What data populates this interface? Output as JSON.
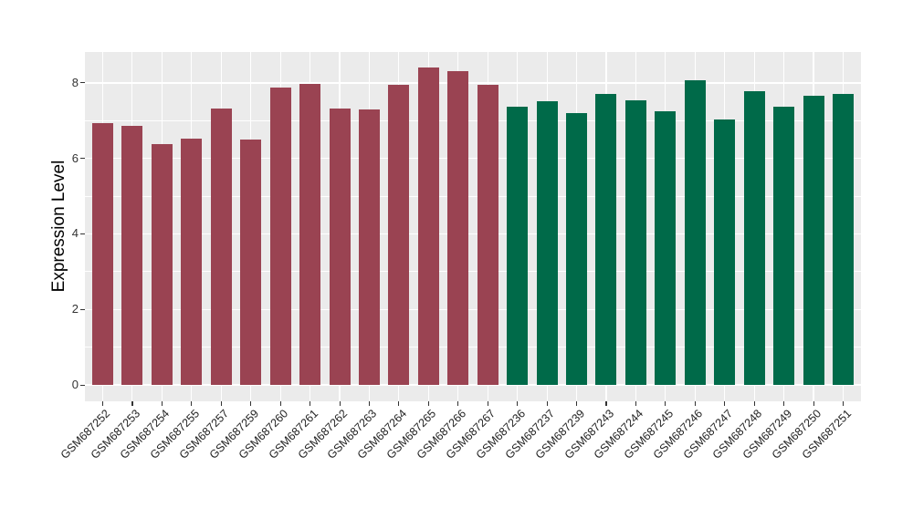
{
  "chart_data": {
    "type": "bar",
    "title": "",
    "xlabel": "",
    "ylabel": "Expression Level",
    "categories": [
      "GSM687252",
      "GSM687253",
      "GSM687254",
      "GSM687255",
      "GSM687257",
      "GSM687259",
      "GSM687260",
      "GSM687261",
      "GSM687262",
      "GSM687263",
      "GSM687264",
      "GSM687265",
      "GSM687266",
      "GSM687267",
      "GSM687236",
      "GSM687237",
      "GSM687239",
      "GSM687243",
      "GSM687244",
      "GSM687245",
      "GSM687246",
      "GSM687247",
      "GSM687248",
      "GSM687249",
      "GSM687250",
      "GSM687251"
    ],
    "values": [
      6.94,
      6.85,
      6.38,
      6.52,
      7.32,
      6.51,
      7.88,
      7.98,
      7.31,
      7.3,
      7.96,
      8.41,
      8.3,
      7.94,
      7.37,
      7.51,
      7.21,
      7.7,
      7.53,
      7.25,
      8.07,
      7.04,
      7.78,
      7.37,
      7.67,
      7.7
    ],
    "bar_groups": [
      "maroon",
      "maroon",
      "maroon",
      "maroon",
      "maroon",
      "maroon",
      "maroon",
      "maroon",
      "maroon",
      "maroon",
      "maroon",
      "maroon",
      "maroon",
      "maroon",
      "green",
      "green",
      "green",
      "green",
      "green",
      "green",
      "green",
      "green",
      "green",
      "green",
      "green",
      "green"
    ],
    "group_colors": {
      "maroon": "#9A4352",
      "green": "#006A49"
    },
    "ylim": [
      0,
      8.82
    ],
    "yticks": [
      0,
      2,
      4,
      6,
      8
    ],
    "yticks_minor": [
      1,
      3,
      5,
      7
    ],
    "grid": "on",
    "legend": "none",
    "panel_bg": "#EBEBEB",
    "grid_color": "#FFFFFF"
  }
}
